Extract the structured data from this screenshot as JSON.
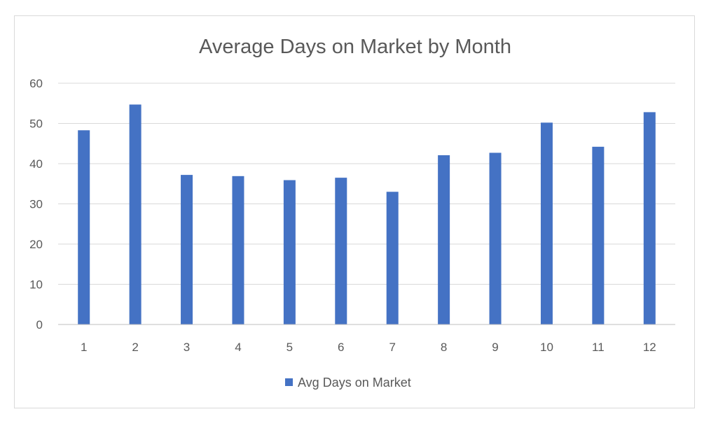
{
  "chart_data": {
    "type": "bar",
    "title": "Average Days on Market by Month",
    "categories": [
      "1",
      "2",
      "3",
      "4",
      "5",
      "6",
      "7",
      "8",
      "9",
      "10",
      "11",
      "12"
    ],
    "series": [
      {
        "name": "Avg Days on Market",
        "color": "#4472c4",
        "values": [
          48.3,
          54.7,
          37.2,
          36.9,
          35.9,
          36.5,
          33.0,
          42.1,
          42.7,
          50.2,
          44.2,
          52.8
        ]
      }
    ],
    "ylim": [
      0,
      60
    ],
    "yticks": [
      "0",
      "10",
      "20",
      "30",
      "40",
      "50",
      "60"
    ],
    "xlabel": "",
    "ylabel": "",
    "grid": true,
    "legend_position": "bottom"
  }
}
